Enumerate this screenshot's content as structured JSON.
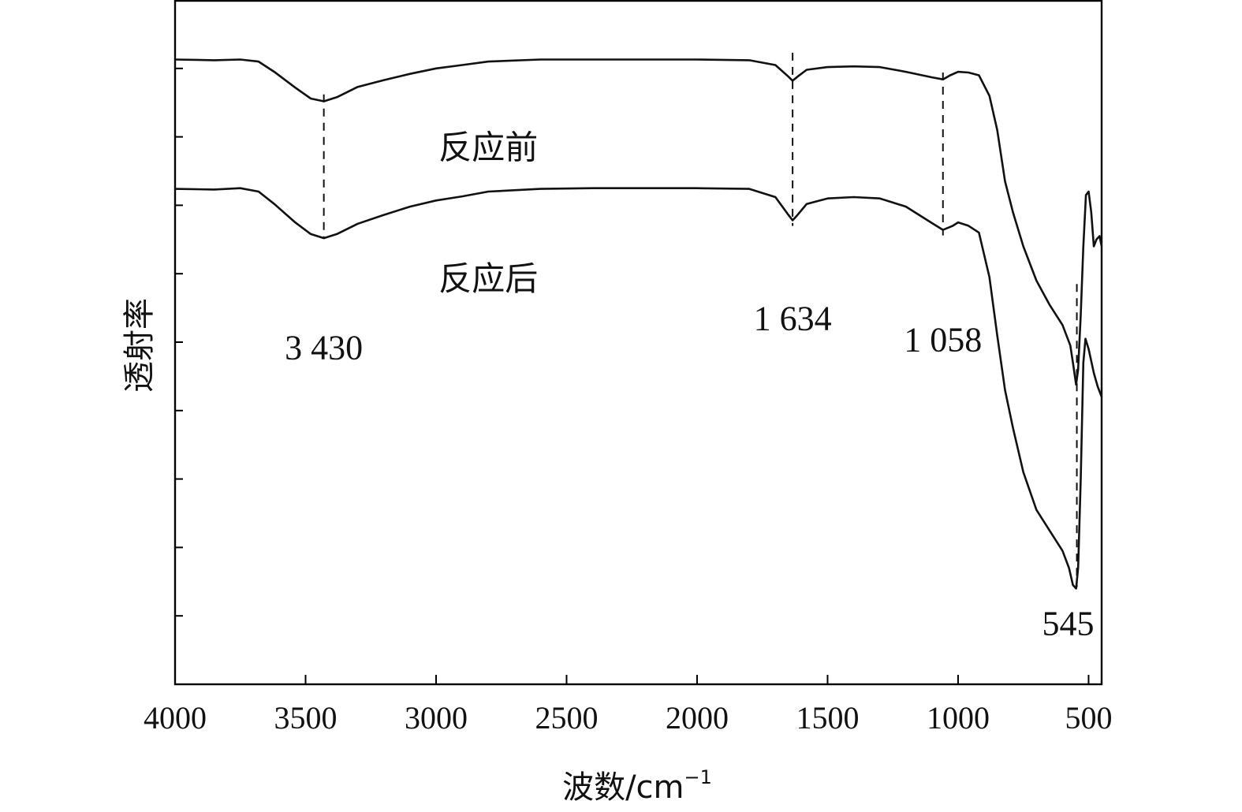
{
  "chart_data": {
    "type": "line",
    "title": "",
    "xlabel": "波数/cm",
    "xlabel_sup": "−1",
    "ylabel": "透射率",
    "xlim": [
      4000,
      450
    ],
    "ylim": [
      0,
      10
    ],
    "x_ticks": [
      4000,
      3500,
      3000,
      2500,
      2000,
      1500,
      1000,
      500
    ],
    "y_ticks": [
      1,
      2,
      3,
      4,
      5,
      6,
      7,
      8,
      9,
      10
    ],
    "y_tick_labels_shown": false,
    "grid": false,
    "series": [
      {
        "name": "反应前",
        "points": [
          [
            4000,
            9.13
          ],
          [
            3850,
            9.12
          ],
          [
            3750,
            9.13
          ],
          [
            3680,
            9.1
          ],
          [
            3620,
            8.95
          ],
          [
            3540,
            8.72
          ],
          [
            3480,
            8.56
          ],
          [
            3430,
            8.52
          ],
          [
            3380,
            8.58
          ],
          [
            3300,
            8.73
          ],
          [
            3200,
            8.83
          ],
          [
            3100,
            8.92
          ],
          [
            3000,
            9.0
          ],
          [
            2900,
            9.05
          ],
          [
            2800,
            9.1
          ],
          [
            2600,
            9.13
          ],
          [
            2400,
            9.13
          ],
          [
            2200,
            9.13
          ],
          [
            2000,
            9.13
          ],
          [
            1800,
            9.12
          ],
          [
            1700,
            9.05
          ],
          [
            1650,
            8.88
          ],
          [
            1634,
            8.82
          ],
          [
            1615,
            8.88
          ],
          [
            1580,
            8.98
          ],
          [
            1500,
            9.02
          ],
          [
            1400,
            9.03
          ],
          [
            1300,
            9.02
          ],
          [
            1200,
            8.95
          ],
          [
            1100,
            8.87
          ],
          [
            1058,
            8.84
          ],
          [
            1030,
            8.9
          ],
          [
            1000,
            8.95
          ],
          [
            960,
            8.94
          ],
          [
            920,
            8.9
          ],
          [
            880,
            8.6
          ],
          [
            850,
            8.1
          ],
          [
            820,
            7.35
          ],
          [
            790,
            6.9
          ],
          [
            750,
            6.4
          ],
          [
            700,
            5.9
          ],
          [
            650,
            5.55
          ],
          [
            600,
            5.25
          ],
          [
            570,
            4.95
          ],
          [
            560,
            4.7
          ],
          [
            548,
            4.38
          ],
          [
            540,
            4.6
          ],
          [
            530,
            5.4
          ],
          [
            520,
            6.4
          ],
          [
            510,
            7.15
          ],
          [
            500,
            7.2
          ],
          [
            490,
            6.9
          ],
          [
            480,
            6.4
          ],
          [
            470,
            6.5
          ],
          [
            458,
            6.55
          ],
          [
            450,
            6.4
          ]
        ]
      },
      {
        "name": "反应后",
        "points": [
          [
            4000,
            7.24
          ],
          [
            3850,
            7.23
          ],
          [
            3750,
            7.25
          ],
          [
            3680,
            7.2
          ],
          [
            3620,
            7.02
          ],
          [
            3540,
            6.75
          ],
          [
            3480,
            6.58
          ],
          [
            3430,
            6.52
          ],
          [
            3380,
            6.58
          ],
          [
            3300,
            6.73
          ],
          [
            3200,
            6.86
          ],
          [
            3100,
            6.98
          ],
          [
            3000,
            7.07
          ],
          [
            2900,
            7.13
          ],
          [
            2800,
            7.2
          ],
          [
            2600,
            7.24
          ],
          [
            2400,
            7.25
          ],
          [
            2200,
            7.25
          ],
          [
            2000,
            7.25
          ],
          [
            1800,
            7.24
          ],
          [
            1700,
            7.12
          ],
          [
            1650,
            6.86
          ],
          [
            1634,
            6.78
          ],
          [
            1615,
            6.86
          ],
          [
            1580,
            7.02
          ],
          [
            1500,
            7.1
          ],
          [
            1400,
            7.12
          ],
          [
            1300,
            7.1
          ],
          [
            1200,
            6.98
          ],
          [
            1100,
            6.74
          ],
          [
            1058,
            6.64
          ],
          [
            1020,
            6.7
          ],
          [
            1000,
            6.75
          ],
          [
            960,
            6.7
          ],
          [
            920,
            6.6
          ],
          [
            880,
            5.95
          ],
          [
            850,
            5.1
          ],
          [
            820,
            4.3
          ],
          [
            790,
            3.75
          ],
          [
            750,
            3.1
          ],
          [
            700,
            2.55
          ],
          [
            650,
            2.25
          ],
          [
            600,
            1.95
          ],
          [
            575,
            1.7
          ],
          [
            560,
            1.45
          ],
          [
            548,
            1.4
          ],
          [
            540,
            1.7
          ],
          [
            530,
            3.0
          ],
          [
            520,
            4.7
          ],
          [
            512,
            5.05
          ],
          [
            500,
            4.9
          ],
          [
            480,
            4.55
          ],
          [
            465,
            4.35
          ],
          [
            450,
            4.2
          ]
        ]
      }
    ],
    "markers": [
      {
        "x": 3430,
        "label": "3 430"
      },
      {
        "x": 1634,
        "label": "1 634"
      },
      {
        "x": 1058,
        "label": "1 058"
      },
      {
        "x": 545,
        "label": "545"
      }
    ],
    "legend": "inline labels beside curves"
  }
}
